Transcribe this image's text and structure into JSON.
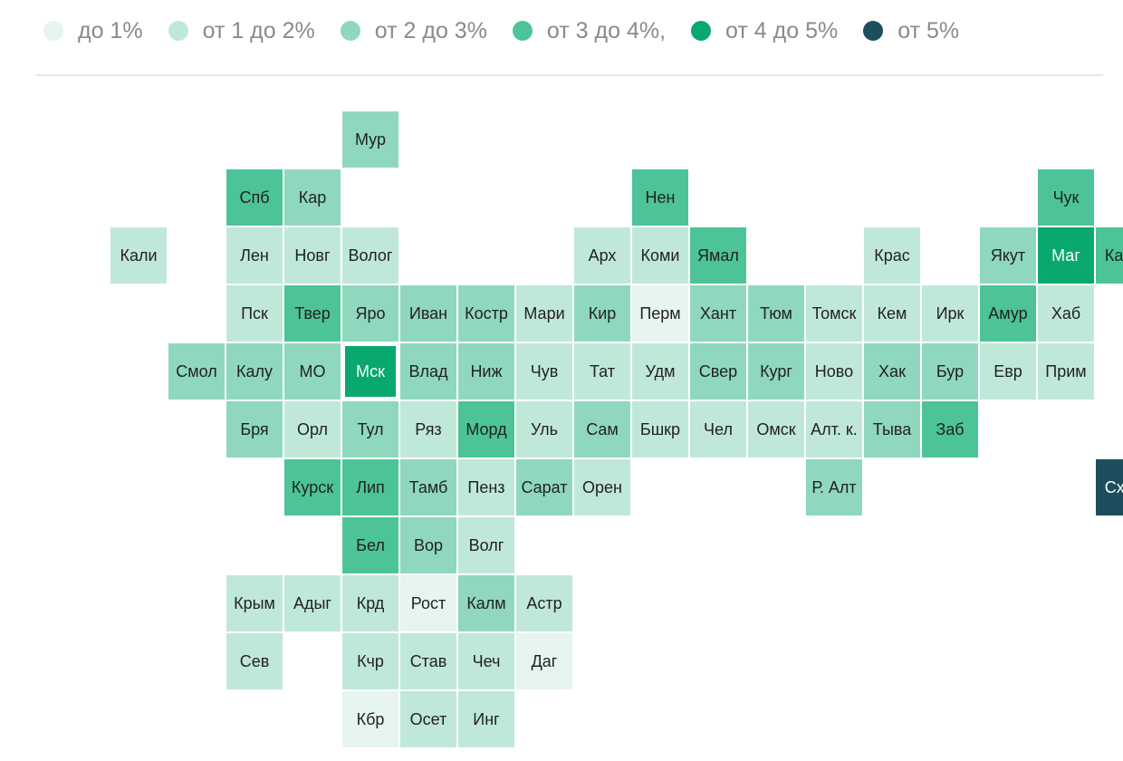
{
  "legend": [
    {
      "label": "до 1%",
      "color": "#e6f5ee"
    },
    {
      "label": "от 1 до 2%",
      "color": "#c0e8d8"
    },
    {
      "label": "от 2 до 3%",
      "color": "#8fd8be"
    },
    {
      "label": "от 3 до 4%,",
      "color": "#4cc497"
    },
    {
      "label": "от 4 до 5%",
      "color": "#08a86e"
    },
    {
      "label": "от 5%",
      "color": "#1c4e5e"
    }
  ],
  "regions": [
    {
      "label": "Мур",
      "row": 0,
      "col": 5,
      "class": 2
    },
    {
      "label": "Спб",
      "row": 1,
      "col": 3,
      "class": 3
    },
    {
      "label": "Кар",
      "row": 1,
      "col": 4,
      "class": 2
    },
    {
      "label": "Нен",
      "row": 1,
      "col": 10,
      "class": 3
    },
    {
      "label": "Чук",
      "row": 1,
      "col": 17,
      "class": 3
    },
    {
      "label": "Кали",
      "row": 2,
      "col": 1,
      "class": 1
    },
    {
      "label": "Лен",
      "row": 2,
      "col": 3,
      "class": 1
    },
    {
      "label": "Новг",
      "row": 2,
      "col": 4,
      "class": 1
    },
    {
      "label": "Волог",
      "row": 2,
      "col": 5,
      "class": 1
    },
    {
      "label": "Арх",
      "row": 2,
      "col": 9,
      "class": 1
    },
    {
      "label": "Коми",
      "row": 2,
      "col": 10,
      "class": 1
    },
    {
      "label": "Ямал",
      "row": 2,
      "col": 11,
      "class": 3
    },
    {
      "label": "Крас",
      "row": 2,
      "col": 14,
      "class": 1
    },
    {
      "label": "Якут",
      "row": 2,
      "col": 16,
      "class": 2
    },
    {
      "label": "Маг",
      "row": 2,
      "col": 17,
      "class": 4
    },
    {
      "label": "Камч",
      "row": 2,
      "col": 18,
      "class": 3
    },
    {
      "label": "Пск",
      "row": 3,
      "col": 3,
      "class": 1
    },
    {
      "label": "Твер",
      "row": 3,
      "col": 4,
      "class": 3
    },
    {
      "label": "Яро",
      "row": 3,
      "col": 5,
      "class": 2
    },
    {
      "label": "Иван",
      "row": 3,
      "col": 6,
      "class": 2
    },
    {
      "label": "Костр",
      "row": 3,
      "col": 7,
      "class": 2
    },
    {
      "label": "Мари",
      "row": 3,
      "col": 8,
      "class": 1
    },
    {
      "label": "Кир",
      "row": 3,
      "col": 9,
      "class": 2
    },
    {
      "label": "Перм",
      "row": 3,
      "col": 10,
      "class": 0
    },
    {
      "label": "Хант",
      "row": 3,
      "col": 11,
      "class": 2
    },
    {
      "label": "Тюм",
      "row": 3,
      "col": 12,
      "class": 2
    },
    {
      "label": "Томск",
      "row": 3,
      "col": 13,
      "class": 1
    },
    {
      "label": "Кем",
      "row": 3,
      "col": 14,
      "class": 1
    },
    {
      "label": "Ирк",
      "row": 3,
      "col": 15,
      "class": 1
    },
    {
      "label": "Амур",
      "row": 3,
      "col": 16,
      "class": 3
    },
    {
      "label": "Хаб",
      "row": 3,
      "col": 17,
      "class": 1
    },
    {
      "label": "Смол",
      "row": 4,
      "col": 2,
      "class": 2
    },
    {
      "label": "Калу",
      "row": 4,
      "col": 3,
      "class": 2
    },
    {
      "label": "МО",
      "row": 4,
      "col": 4,
      "class": 2
    },
    {
      "label": "Мск",
      "row": 4,
      "col": 5,
      "class": 4,
      "highlight": true
    },
    {
      "label": "Влад",
      "row": 4,
      "col": 6,
      "class": 2
    },
    {
      "label": "Ниж",
      "row": 4,
      "col": 7,
      "class": 2
    },
    {
      "label": "Чув",
      "row": 4,
      "col": 8,
      "class": 1
    },
    {
      "label": "Тат",
      "row": 4,
      "col": 9,
      "class": 1
    },
    {
      "label": "Удм",
      "row": 4,
      "col": 10,
      "class": 1
    },
    {
      "label": "Свер",
      "row": 4,
      "col": 11,
      "class": 2
    },
    {
      "label": "Кург",
      "row": 4,
      "col": 12,
      "class": 2
    },
    {
      "label": "Ново",
      "row": 4,
      "col": 13,
      "class": 1
    },
    {
      "label": "Хак",
      "row": 4,
      "col": 14,
      "class": 2
    },
    {
      "label": "Бур",
      "row": 4,
      "col": 15,
      "class": 2
    },
    {
      "label": "Евр",
      "row": 4,
      "col": 16,
      "class": 1
    },
    {
      "label": "Прим",
      "row": 4,
      "col": 17,
      "class": 1
    },
    {
      "label": "Бря",
      "row": 5,
      "col": 3,
      "class": 2
    },
    {
      "label": "Орл",
      "row": 5,
      "col": 4,
      "class": 1
    },
    {
      "label": "Тул",
      "row": 5,
      "col": 5,
      "class": 2
    },
    {
      "label": "Ряз",
      "row": 5,
      "col": 6,
      "class": 1
    },
    {
      "label": "Морд",
      "row": 5,
      "col": 7,
      "class": 3
    },
    {
      "label": "Уль",
      "row": 5,
      "col": 8,
      "class": 1
    },
    {
      "label": "Сам",
      "row": 5,
      "col": 9,
      "class": 2
    },
    {
      "label": "Бшкр",
      "row": 5,
      "col": 10,
      "class": 1
    },
    {
      "label": "Чел",
      "row": 5,
      "col": 11,
      "class": 1
    },
    {
      "label": "Омск",
      "row": 5,
      "col": 12,
      "class": 1
    },
    {
      "label": "Алт. к.",
      "row": 5,
      "col": 13,
      "class": 1
    },
    {
      "label": "Тыва",
      "row": 5,
      "col": 14,
      "class": 2
    },
    {
      "label": "Заб",
      "row": 5,
      "col": 15,
      "class": 3
    },
    {
      "label": "Курск",
      "row": 6,
      "col": 4,
      "class": 3
    },
    {
      "label": "Лип",
      "row": 6,
      "col": 5,
      "class": 3
    },
    {
      "label": "Тамб",
      "row": 6,
      "col": 6,
      "class": 2
    },
    {
      "label": "Пенз",
      "row": 6,
      "col": 7,
      "class": 1
    },
    {
      "label": "Сарат",
      "row": 6,
      "col": 8,
      "class": 2
    },
    {
      "label": "Орен",
      "row": 6,
      "col": 9,
      "class": 1
    },
    {
      "label": "Р. Алт",
      "row": 6,
      "col": 13,
      "class": 2
    },
    {
      "label": "Схлн",
      "row": 6,
      "col": 18,
      "class": 5
    },
    {
      "label": "Бел",
      "row": 7,
      "col": 5,
      "class": 3
    },
    {
      "label": "Вор",
      "row": 7,
      "col": 6,
      "class": 2
    },
    {
      "label": "Волг",
      "row": 7,
      "col": 7,
      "class": 1
    },
    {
      "label": "Крым",
      "row": 8,
      "col": 3,
      "class": 1
    },
    {
      "label": "Адыг",
      "row": 8,
      "col": 4,
      "class": 1
    },
    {
      "label": "Крд",
      "row": 8,
      "col": 5,
      "class": 1
    },
    {
      "label": "Рост",
      "row": 8,
      "col": 6,
      "class": 0
    },
    {
      "label": "Калм",
      "row": 8,
      "col": 7,
      "class": 2
    },
    {
      "label": "Астр",
      "row": 8,
      "col": 8,
      "class": 1
    },
    {
      "label": "Сев",
      "row": 9,
      "col": 3,
      "class": 1
    },
    {
      "label": "Кчр",
      "row": 9,
      "col": 5,
      "class": 1
    },
    {
      "label": "Став",
      "row": 9,
      "col": 6,
      "class": 1
    },
    {
      "label": "Чеч",
      "row": 9,
      "col": 7,
      "class": 1
    },
    {
      "label": "Даг",
      "row": 9,
      "col": 8,
      "class": 0
    },
    {
      "label": "Кбр",
      "row": 10,
      "col": 5,
      "class": 0
    },
    {
      "label": "Осет",
      "row": 10,
      "col": 6,
      "class": 1
    },
    {
      "label": "Инг",
      "row": 10,
      "col": 7,
      "class": 1
    }
  ]
}
